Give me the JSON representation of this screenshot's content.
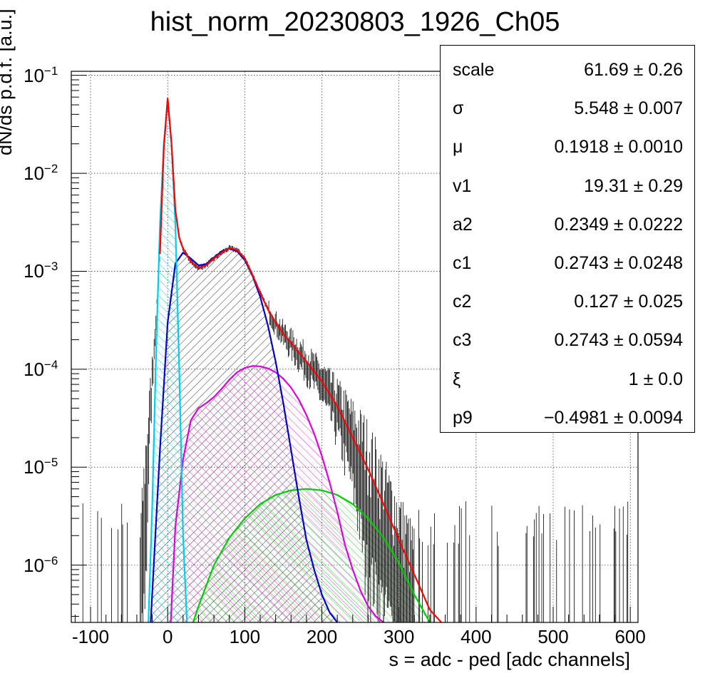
{
  "chart_data": {
    "type": "line",
    "title": "hist_norm_20230803_1926_Ch05",
    "xlabel": "s = adc - ped [adc channels]",
    "ylabel": "dN/ds p.d.f. [a.u.]",
    "xlim": [
      -125,
      610
    ],
    "ylim": [
      2.6e-07,
      0.11
    ],
    "yscale": "log",
    "grid": true,
    "x_ticks": [
      "-100",
      "0",
      "100",
      "200",
      "300",
      "400",
      "500",
      "600"
    ],
    "y_ticks": [
      {
        "base": "10",
        "exp": "-6"
      },
      {
        "base": "10",
        "exp": "-5"
      },
      {
        "base": "10",
        "exp": "-4"
      },
      {
        "base": "10",
        "exp": "-3"
      },
      {
        "base": "10",
        "exp": "-2"
      },
      {
        "base": "10",
        "exp": "-1"
      }
    ],
    "series": [
      {
        "key": "total_fit",
        "color": "#ff0000",
        "x": [
          -10,
          -5,
          0,
          5,
          10,
          15,
          20,
          30,
          40,
          50,
          60,
          70,
          80,
          90,
          100,
          110,
          120,
          130,
          140,
          150,
          160,
          180,
          200,
          220,
          240,
          260,
          280,
          300,
          320,
          340,
          355
        ],
        "y": [
          0.0015,
          0.018,
          0.058,
          0.02,
          0.0042,
          0.0022,
          0.0017,
          0.00125,
          0.00108,
          0.00115,
          0.00135,
          0.00155,
          0.00172,
          0.00165,
          0.00135,
          0.00092,
          0.0006,
          0.00041,
          0.0003,
          0.00023,
          0.000185,
          0.00012,
          7.5e-05,
          4.2e-05,
          2e-05,
          9.5e-06,
          4.2e-06,
          1.8e-06,
          8e-07,
          3.5e-07,
          2.6e-07
        ]
      },
      {
        "key": "pedestal",
        "color": "#00ccee",
        "x": [
          -25,
          -20,
          -15,
          -10,
          -5,
          0,
          5,
          10,
          15,
          20,
          25
        ],
        "y": [
          2.6e-07,
          4e-06,
          0.00015,
          0.003,
          0.02,
          0.058,
          0.02,
          0.003,
          0.0001,
          2e-06,
          2.6e-07
        ]
      },
      {
        "key": "one_pe",
        "color": "#0000cc",
        "x": [
          -22,
          -10,
          0,
          10,
          20,
          30,
          40,
          50,
          60,
          70,
          80,
          90,
          100,
          110,
          120,
          130,
          140,
          150,
          160,
          170,
          180,
          190,
          200,
          210,
          220
        ],
        "y": [
          2.6e-07,
          1.5e-05,
          0.0003,
          0.0012,
          0.00155,
          0.00135,
          0.00115,
          0.00118,
          0.00138,
          0.0016,
          0.0017,
          0.0016,
          0.0013,
          0.0009,
          0.00055,
          0.00028,
          0.00012,
          4.5e-05,
          1.5e-05,
          5e-06,
          1.8e-06,
          9e-07,
          5e-07,
          3.3e-07,
          2.6e-07
        ]
      },
      {
        "key": "two_pe",
        "color": "#dd00dd",
        "x": [
          4,
          10,
          20,
          30,
          40,
          50,
          60,
          70,
          80,
          90,
          100,
          110,
          120,
          130,
          140,
          150,
          160,
          170,
          180,
          190,
          200,
          210,
          220,
          230,
          240,
          250,
          260,
          270,
          280
        ],
        "y": [
          2.6e-07,
          2.5e-06,
          1.2e-05,
          3e-05,
          4e-05,
          4.5e-05,
          5.2e-05,
          6.3e-05,
          7.8e-05,
          9.3e-05,
          0.000103,
          0.000108,
          0.000107,
          0.000102,
          9.3e-05,
          8e-05,
          6.5e-05,
          4.9e-05,
          3.4e-05,
          2.2e-05,
          1.3e-05,
          7e-06,
          3.5e-06,
          1.6e-06,
          9e-07,
          5.5e-07,
          3.8e-07,
          3e-07,
          2.6e-07
        ]
      },
      {
        "key": "three_pe",
        "color": "#00cc00",
        "x": [
          33,
          40,
          60,
          80,
          100,
          120,
          140,
          160,
          180,
          200,
          220,
          240,
          260,
          280,
          300,
          320,
          340
        ],
        "y": [
          2.6e-07,
          3.8e-07,
          1e-06,
          1.9e-06,
          3e-06,
          4.2e-06,
          5.2e-06,
          5.8e-06,
          6e-06,
          5.8e-06,
          5.2e-06,
          4.2e-06,
          3e-06,
          1.9e-06,
          1.05e-06,
          5e-07,
          2.6e-07
        ]
      }
    ],
    "stats": [
      {
        "name": "scale",
        "value": "61.69 ± 0.26"
      },
      {
        "name": "σ",
        "value": "5.548 ± 0.007"
      },
      {
        "name": "μ",
        "value": "0.1918 ± 0.0010"
      },
      {
        "name": "v1",
        "value": "19.31 ± 0.29"
      },
      {
        "name": "a2",
        "value": "0.2349 ± 0.0222"
      },
      {
        "name": "c1",
        "value": "0.2743 ± 0.0248"
      },
      {
        "name": "c2",
        "value": "0.127 ± 0.025"
      },
      {
        "name": "c3",
        "value": "0.2743 ± 0.0594"
      },
      {
        "name": "ξ",
        "value": "1 ± 0.0"
      },
      {
        "name": "p9",
        "value": "−0.4981 ± 0.0094"
      }
    ]
  }
}
